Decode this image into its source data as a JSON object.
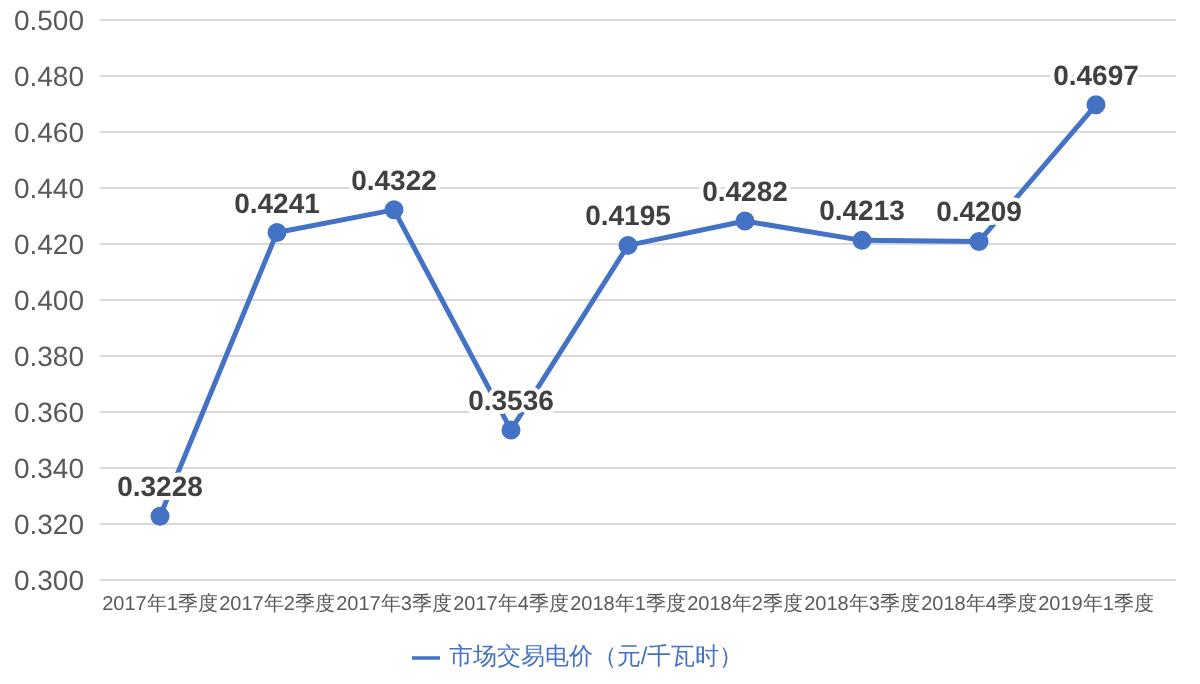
{
  "chart_data": {
    "type": "line",
    "categories": [
      "2017年1季度",
      "2017年2季度",
      "2017年3季度",
      "2017年4季度",
      "2018年1季度",
      "2018年2季度",
      "2018年3季度",
      "2018年4季度",
      "2019年1季度"
    ],
    "series": [
      {
        "name": "市场交易电价（元/千瓦时）",
        "color": "#4472c4",
        "values": [
          0.3228,
          0.4241,
          0.4322,
          0.3536,
          0.4195,
          0.4282,
          0.4213,
          0.4209,
          0.4697
        ]
      }
    ],
    "ylim": [
      0.3,
      0.5
    ],
    "yticks": [
      {
        "value": 0.3,
        "label": "0.300"
      },
      {
        "value": 0.32,
        "label": "0.320"
      },
      {
        "value": 0.34,
        "label": "0.340"
      },
      {
        "value": 0.36,
        "label": "0.360"
      },
      {
        "value": 0.38,
        "label": "0.380"
      },
      {
        "value": 0.4,
        "label": "0.400"
      },
      {
        "value": 0.42,
        "label": "0.420"
      },
      {
        "value": 0.44,
        "label": "0.440"
      },
      {
        "value": 0.46,
        "label": "0.460"
      },
      {
        "value": 0.48,
        "label": "0.480"
      },
      {
        "value": 0.5,
        "label": "0.500"
      }
    ],
    "grid": "y",
    "legend": "bottom",
    "marker": "circle",
    "line_style": "solid",
    "data_labels": true
  }
}
